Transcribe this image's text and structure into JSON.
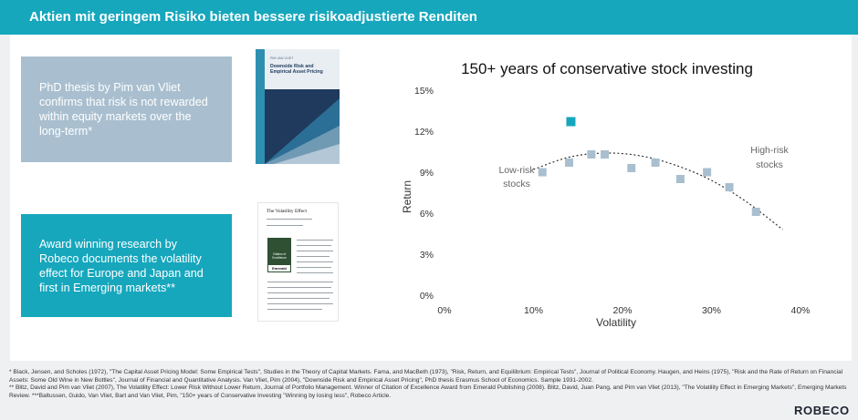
{
  "slide": {
    "title": "Aktien mit geringem Risiko bieten bessere risikoadjustierte Renditen",
    "box_thesis": "PhD thesis by Pim van Vliet confirms that risk is not rewarded within equity markets over the long-term*",
    "box_award": "Award winning research by Robeco documents the volatility effect for Europe and Japan and first in Emerging markets**",
    "logo": "ROBECO",
    "colors": {
      "accent": "#16a7bd",
      "gray_box": "#a9bfcf",
      "marker": "#a9bfcf",
      "highlight": "#16a7bd"
    }
  },
  "book1": {
    "author": "PIM VAN VLIET",
    "title": "Downside Risk and Empirical Asset Pricing"
  },
  "book2": {
    "title": "The Volatility Effect",
    "badge": "Citation of Excellence",
    "publisher": "Emerald"
  },
  "chart": {
    "title": "150+ years of conservative stock investing",
    "xlabel": "Volatility",
    "ylabel": "Return",
    "x_ticks": [
      "0%",
      "10%",
      "20%",
      "30%",
      "40%"
    ],
    "y_ticks": [
      "0%",
      "3%",
      "6%",
      "9%",
      "12%",
      "15%"
    ],
    "annotation_low": [
      "Low-risk",
      "stocks"
    ],
    "annotation_high": [
      "High-risk",
      "stocks"
    ]
  },
  "chart_data": {
    "type": "scatter",
    "title": "150+ years of conservative stock investing",
    "xlabel": "Volatility",
    "ylabel": "Return",
    "xlim": [
      0,
      40
    ],
    "ylim": [
      0,
      15
    ],
    "points": [
      {
        "x": 11.0,
        "y": 9.0
      },
      {
        "x": 14.0,
        "y": 9.7
      },
      {
        "x": 16.5,
        "y": 10.3
      },
      {
        "x": 18.0,
        "y": 10.3
      },
      {
        "x": 21.0,
        "y": 9.3
      },
      {
        "x": 23.7,
        "y": 9.7
      },
      {
        "x": 26.5,
        "y": 8.5
      },
      {
        "x": 29.5,
        "y": 9.0
      },
      {
        "x": 32.0,
        "y": 7.9
      },
      {
        "x": 35.0,
        "y": 6.1
      }
    ],
    "highlight_point": {
      "x": 14.2,
      "y": 12.7
    },
    "trend": [
      {
        "x": 10,
        "y": 9.2
      },
      {
        "x": 14,
        "y": 10.1
      },
      {
        "x": 18,
        "y": 10.4
      },
      {
        "x": 22,
        "y": 10.2
      },
      {
        "x": 26,
        "y": 9.5
      },
      {
        "x": 30,
        "y": 8.4
      },
      {
        "x": 34,
        "y": 6.8
      },
      {
        "x": 38,
        "y": 4.8
      }
    ]
  },
  "footnotes": [
    "* Black, Jensen, and Scholes (1972), \"The Capital Asset Pricing Model: Some Empirical Tests\", Studies in the Theory of Capital Markets. Fama, and MacBeth (1973), \"Risk, Return, and Equilibrium: Empirical Tests\", Journal of Political Economy. Haugen, and Heins (1975), \"Risk and the Rate of Return on Financial Assets: Some Old Wine in New Bottles\", Journal of Financial and Quantitative Analysis. Van Vliet, Pim (2004), \"Downside Risk and Empirical Asset Pricing\", PhD thesis Erasmus School of Economics. Sample 1931-2002.",
    "** Blitz, David and Pim van Vliet (2007), The Volatility Effect: Lower Risk Without Lower Return, Journal of Portfolio Management. Winner of Citation of Excellence Award from Emerald Publishing (2008). Blitz, David, Juan Pang, and Pim van Vliet (2013), \"The Volatility Effect in Emerging Markets\", Emerging Markets Review. ***Baltussen, Guido, Van Vliet, Bart and Van Vliet, Pim, \"150+ years of Conservative Investing \"Winning by losing less\", Robeco Article."
  ]
}
